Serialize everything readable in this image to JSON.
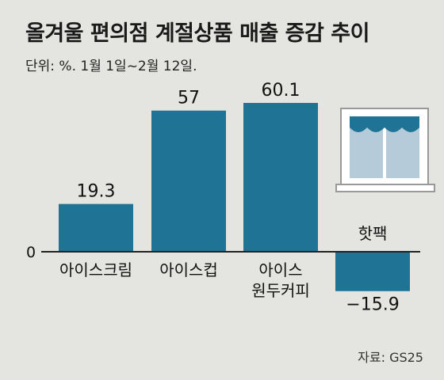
{
  "header": {
    "title": "올겨울 편의점 계절상품 매출 증감 추이",
    "subtitle": "단위: %. 1월 1일~2월 12일.",
    "source": "자료: GS25"
  },
  "colors": {
    "bar": "#1f7394",
    "background": "#e4e4e0",
    "icon_window": "#b5cbd9",
    "icon_awning": "#1f7394"
  },
  "chart_data": {
    "type": "bar",
    "categories": [
      "아이스크림",
      "아이스컵",
      "아이스\n원두커피",
      "핫팩"
    ],
    "values": [
      19.3,
      57,
      60.1,
      -15.9
    ],
    "value_labels": [
      "19.3",
      "57",
      "60.1",
      "−15.9"
    ],
    "zero_label": "0",
    "title": "올겨울 편의점 계절상품 매출 증감 추이",
    "ylim": [
      -15.9,
      60.1
    ],
    "grid": false,
    "legend": "none"
  },
  "icons": [
    "store-window-icon"
  ]
}
